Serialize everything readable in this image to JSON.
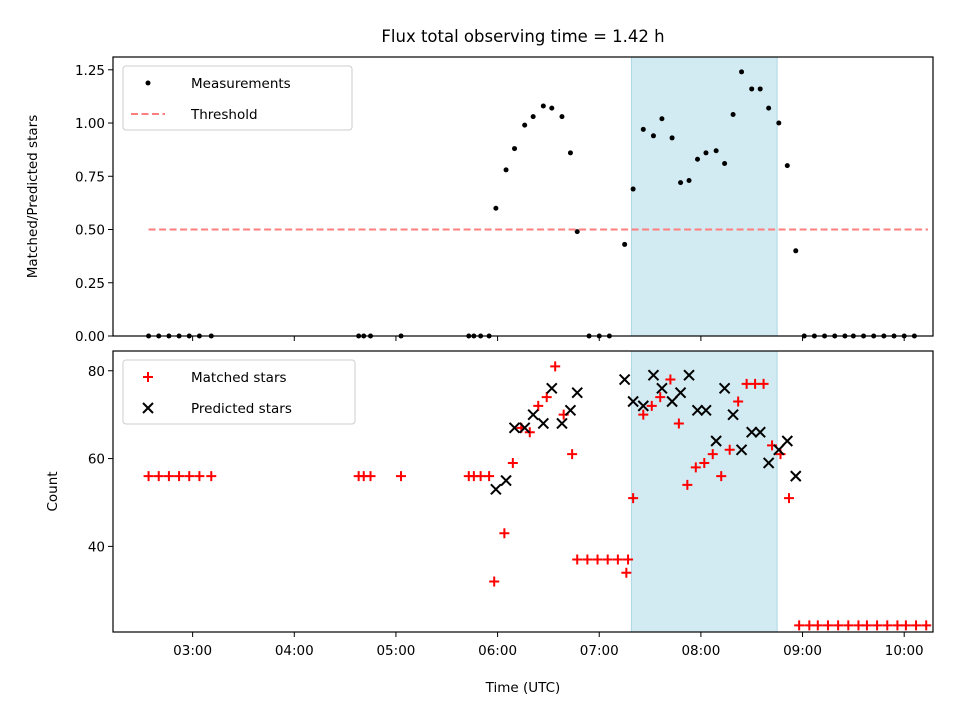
{
  "figure": {
    "title": "Flux total observing time = 1.42 h",
    "xlabel": "Time (UTC)",
    "x_range": [
      "02:13",
      "10:17"
    ],
    "x_ticks": [
      "03:00",
      "04:00",
      "05:00",
      "06:00",
      "07:00",
      "08:00",
      "09:00",
      "10:00"
    ],
    "highlight": {
      "start": "07:19",
      "end": "08:45",
      "color": "#add8e6"
    }
  },
  "chart_data": [
    {
      "type": "scatter",
      "ylabel": "Matched/Predicted stars",
      "ylim": [
        0,
        1.31
      ],
      "y_ticks": [
        "0.00",
        "0.25",
        "0.50",
        "0.75",
        "1.00",
        "1.25"
      ],
      "legend_placement": "top-left",
      "series": [
        {
          "name": "Measurements",
          "color": "#000000",
          "marker": "dot",
          "points": [
            [
              "02:34",
              0
            ],
            [
              "02:40",
              0
            ],
            [
              "02:46",
              0
            ],
            [
              "02:52",
              0
            ],
            [
              "02:58",
              0
            ],
            [
              "03:04",
              0
            ],
            [
              "03:11",
              0
            ],
            [
              "04:38",
              0
            ],
            [
              "04:41",
              0
            ],
            [
              "04:45",
              0
            ],
            [
              "05:03",
              0
            ],
            [
              "05:43",
              0
            ],
            [
              "05:46",
              0
            ],
            [
              "05:50",
              0
            ],
            [
              "05:55",
              0
            ],
            [
              "05:59",
              0.6
            ],
            [
              "06:05",
              0.78
            ],
            [
              "06:10",
              0.88
            ],
            [
              "06:16",
              0.99
            ],
            [
              "06:21",
              1.03
            ],
            [
              "06:27",
              1.08
            ],
            [
              "06:32",
              1.07
            ],
            [
              "06:38",
              1.03
            ],
            [
              "06:43",
              0.86
            ],
            [
              "06:47",
              0.49
            ],
            [
              "06:54",
              0
            ],
            [
              "07:00",
              0
            ],
            [
              "07:06",
              0
            ],
            [
              "07:15",
              0.43
            ],
            [
              "07:20",
              0.69
            ],
            [
              "07:26",
              0.97
            ],
            [
              "07:32",
              0.94
            ],
            [
              "07:37",
              1.02
            ],
            [
              "07:43",
              0.93
            ],
            [
              "07:48",
              0.72
            ],
            [
              "07:53",
              0.73
            ],
            [
              "07:58",
              0.83
            ],
            [
              "08:03",
              0.86
            ],
            [
              "08:09",
              0.87
            ],
            [
              "08:14",
              0.81
            ],
            [
              "08:19",
              1.04
            ],
            [
              "08:24",
              1.24
            ],
            [
              "08:30",
              1.16
            ],
            [
              "08:35",
              1.16
            ],
            [
              "08:40",
              1.07
            ],
            [
              "08:46",
              1.0
            ],
            [
              "08:51",
              0.8
            ],
            [
              "08:56",
              0.4
            ],
            [
              "09:01",
              0
            ],
            [
              "09:07",
              0
            ],
            [
              "09:13",
              0
            ],
            [
              "09:19",
              0
            ],
            [
              "09:25",
              0
            ],
            [
              "09:30",
              0
            ],
            [
              "09:36",
              0
            ],
            [
              "09:42",
              0
            ],
            [
              "09:48",
              0
            ],
            [
              "09:54",
              0
            ],
            [
              "10:00",
              0
            ],
            [
              "10:06",
              0
            ]
          ]
        },
        {
          "name": "Threshold",
          "color": "#ff7f7f",
          "style": "dashed-line",
          "points": [
            [
              "02:34",
              0.5
            ],
            [
              "10:14",
              0.5
            ]
          ]
        }
      ]
    },
    {
      "type": "scatter",
      "ylabel": "Count",
      "ylim": [
        20.5,
        84.5
      ],
      "y_ticks": [
        "40",
        "60",
        "80"
      ],
      "legend_placement": "top-left",
      "series": [
        {
          "name": "Matched stars",
          "color": "#ff0000",
          "marker": "plus",
          "points": [
            [
              "02:34",
              56
            ],
            [
              "02:40",
              56
            ],
            [
              "02:46",
              56
            ],
            [
              "02:52",
              56
            ],
            [
              "02:58",
              56
            ],
            [
              "03:04",
              56
            ],
            [
              "03:11",
              56
            ],
            [
              "04:38",
              56
            ],
            [
              "04:41",
              56
            ],
            [
              "04:45",
              56
            ],
            [
              "05:03",
              56
            ],
            [
              "05:43",
              56
            ],
            [
              "05:46",
              56
            ],
            [
              "05:50",
              56
            ],
            [
              "05:55",
              56
            ],
            [
              "05:58",
              32
            ],
            [
              "06:04",
              43
            ],
            [
              "06:09",
              59
            ],
            [
              "06:14",
              67
            ],
            [
              "06:19",
              66
            ],
            [
              "06:24",
              72
            ],
            [
              "06:29",
              74
            ],
            [
              "06:34",
              81
            ],
            [
              "06:39",
              70
            ],
            [
              "06:44",
              61
            ],
            [
              "06:47",
              37
            ],
            [
              "06:53",
              37
            ],
            [
              "06:59",
              37
            ],
            [
              "07:05",
              37
            ],
            [
              "07:11",
              37
            ],
            [
              "07:17",
              37
            ],
            [
              "07:16",
              34
            ],
            [
              "07:20",
              51
            ],
            [
              "07:26",
              70
            ],
            [
              "07:31",
              72
            ],
            [
              "07:36",
              74
            ],
            [
              "07:42",
              78
            ],
            [
              "07:47",
              68
            ],
            [
              "07:52",
              54
            ],
            [
              "07:57",
              58
            ],
            [
              "08:02",
              59
            ],
            [
              "08:07",
              61
            ],
            [
              "08:12",
              56
            ],
            [
              "08:17",
              62
            ],
            [
              "08:22",
              73
            ],
            [
              "08:27",
              77
            ],
            [
              "08:32",
              77
            ],
            [
              "08:37",
              77
            ],
            [
              "08:42",
              63
            ],
            [
              "08:47",
              61
            ],
            [
              "08:52",
              51
            ],
            [
              "08:58",
              22
            ],
            [
              "09:04",
              22
            ],
            [
              "09:09",
              22
            ],
            [
              "09:15",
              22
            ],
            [
              "09:21",
              22
            ],
            [
              "09:27",
              22
            ],
            [
              "09:33",
              22
            ],
            [
              "09:38",
              22
            ],
            [
              "09:44",
              22
            ],
            [
              "09:50",
              22
            ],
            [
              "09:56",
              22
            ],
            [
              "10:01",
              22
            ],
            [
              "10:07",
              22
            ],
            [
              "10:13",
              22
            ]
          ]
        },
        {
          "name": "Predicted stars",
          "color": "#000000",
          "marker": "x",
          "points": [
            [
              "05:59",
              53
            ],
            [
              "06:05",
              55
            ],
            [
              "06:10",
              67
            ],
            [
              "06:16",
              67
            ],
            [
              "06:21",
              70
            ],
            [
              "06:27",
              68
            ],
            [
              "06:32",
              76
            ],
            [
              "06:38",
              68
            ],
            [
              "06:43",
              71
            ],
            [
              "06:47",
              75
            ],
            [
              "07:15",
              78
            ],
            [
              "07:20",
              73
            ],
            [
              "07:26",
              72
            ],
            [
              "07:32",
              79
            ],
            [
              "07:37",
              76
            ],
            [
              "07:43",
              73
            ],
            [
              "07:48",
              75
            ],
            [
              "07:53",
              79
            ],
            [
              "07:58",
              71
            ],
            [
              "08:03",
              71
            ],
            [
              "08:09",
              64
            ],
            [
              "08:14",
              76
            ],
            [
              "08:19",
              70
            ],
            [
              "08:24",
              62
            ],
            [
              "08:30",
              66
            ],
            [
              "08:35",
              66
            ],
            [
              "08:40",
              59
            ],
            [
              "08:46",
              62
            ],
            [
              "08:51",
              64
            ],
            [
              "08:56",
              56
            ]
          ]
        }
      ]
    }
  ]
}
